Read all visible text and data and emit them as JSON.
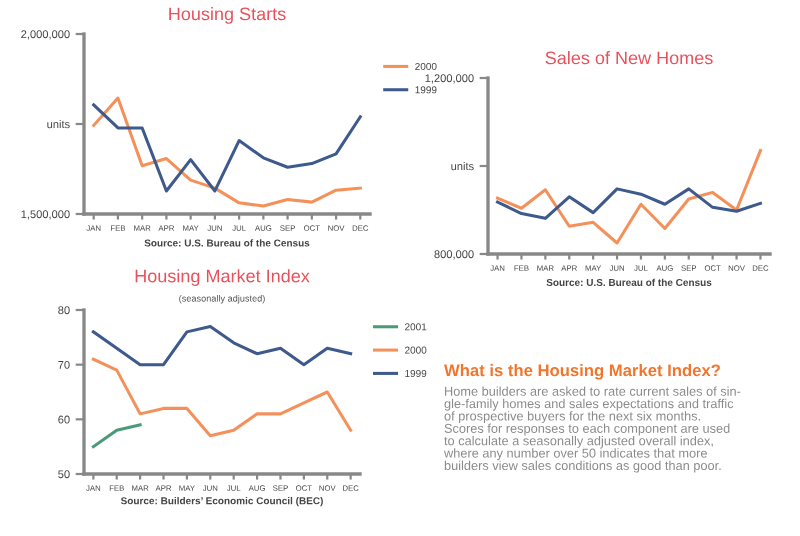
{
  "chart_data": [
    {
      "type": "line",
      "title": "Housing Starts",
      "categories": [
        "JAN",
        "FEB",
        "MAR",
        "APR",
        "MAY",
        "JUN",
        "JUL",
        "AUG",
        "SEP",
        "OCT",
        "NOV",
        "DEC"
      ],
      "series": [
        {
          "name": "2000",
          "color": "#f4915a",
          "values": [
            1746000,
            1822000,
            1634000,
            1654000,
            1594000,
            1572000,
            1531000,
            1522000,
            1540000,
            1533000,
            1566000,
            1572000
          ]
        },
        {
          "name": "1999",
          "color": "#3e5a8c",
          "values": [
            1803000,
            1739000,
            1739000,
            1564000,
            1651000,
            1564000,
            1704000,
            1656000,
            1630000,
            1640000,
            1667000,
            1770000
          ]
        }
      ],
      "ylim": [
        1500000,
        2000000
      ],
      "yticks": [
        {
          "value": 1500000,
          "label": "1,500,000"
        },
        {
          "value": 1750000,
          "label": "units"
        },
        {
          "value": 2000000,
          "label": "2,000,000"
        }
      ],
      "annotations": [
        "Source: U.S. Bureau of the Census"
      ],
      "legend": "right",
      "grid": false
    },
    {
      "type": "line",
      "title": "Sales of New Homes",
      "categories": [
        "JAN",
        "FEB",
        "MAR",
        "APR",
        "MAY",
        "JUN",
        "JUL",
        "AUG",
        "SEP",
        "OCT",
        "NOV",
        "DEC"
      ],
      "series": [
        {
          "color": "#f4915a",
          "values": [
            927000,
            904000,
            946000,
            863000,
            872000,
            825000,
            913000,
            858000,
            925000,
            940000,
            900000,
            1035000
          ]
        },
        {
          "color": "#3e5a8c",
          "values": [
            918000,
            892000,
            881000,
            930000,
            894000,
            948000,
            936000,
            913000,
            948000,
            906000,
            897000,
            915000
          ]
        }
      ],
      "ylim": [
        800000,
        1200000
      ],
      "yticks": [
        {
          "value": 800000,
          "label": "800,000"
        },
        {
          "value": 1000000,
          "label": "units"
        },
        {
          "value": 1200000,
          "label": "1,200,000"
        }
      ],
      "annotations": [
        "Source: U.S. Bureau of the Census"
      ],
      "grid": false
    },
    {
      "type": "line",
      "title": "Housing Market Index",
      "subtitle": "(seasonally adjusted)",
      "categories": [
        "JAN",
        "FEB",
        "MAR",
        "APR",
        "MAY",
        "JUN",
        "JUL",
        "AUG",
        "SEP",
        "OCT",
        "NOV",
        "DEC"
      ],
      "series": [
        {
          "name": "2001",
          "color": "#4a9a7a",
          "values": [
            55,
            58,
            59,
            null,
            null,
            null,
            null,
            null,
            null,
            null,
            null,
            null
          ]
        },
        {
          "name": "2000",
          "color": "#f4915a",
          "values": [
            71,
            69,
            61,
            62,
            62,
            57,
            58,
            61,
            61,
            63,
            65,
            58
          ]
        },
        {
          "name": "1999",
          "color": "#3e5a8c",
          "values": [
            76,
            73,
            70,
            70,
            76,
            77,
            74,
            72,
            73,
            70,
            73,
            72
          ]
        }
      ],
      "ylim": [
        50,
        80
      ],
      "yticks": [
        50,
        60,
        70,
        80
      ],
      "annotations": [
        "Source: Builders’ Economic Council (BEC)"
      ],
      "legend": "right",
      "grid": false
    },
    {
      "type": "other",
      "title": "What is the Housing Market Index?",
      "annotations": [
        "Home builders are asked to rate current sales of sin-\ngle-family homes and sales expectations and traffic\nof prospective buyers for the next six months.\nScores for responses to each component are used\nto calculate a seasonally adjusted overall index,\nwhere any number over 50 indicates that more\nbuilders view sales conditions as good than poor."
      ]
    }
  ]
}
